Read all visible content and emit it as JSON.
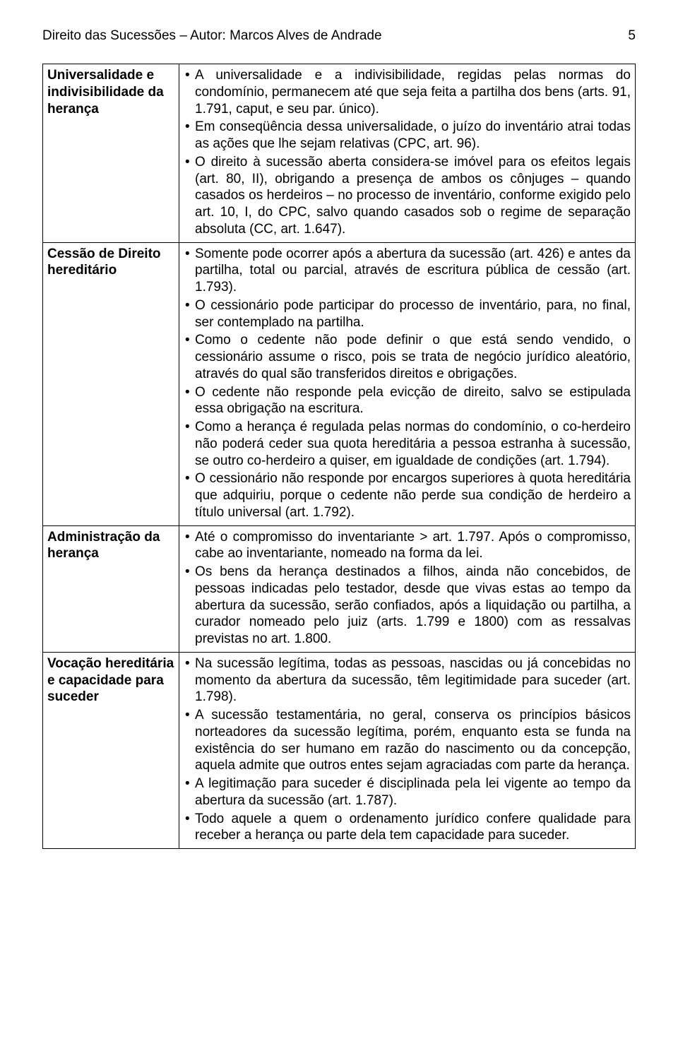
{
  "header": {
    "title": "Direito das Sucessões – Autor: Marcos Alves de Andrade",
    "page_number": "5"
  },
  "rows": [
    {
      "label": "Universalidade e indivisibilidade da herança",
      "bullets": [
        "A universalidade e a indivisibilidade, regidas pelas normas do condomínio, permanecem até que seja feita a partilha dos bens (arts. 91, 1.791, caput, e seu par. único).",
        "Em conseqüência dessa universalidade, o juízo do inventário atrai todas as ações que lhe sejam relativas (CPC, art. 96).",
        "O direito à sucessão aberta considera-se imóvel para os efeitos legais (art. 80, II), obrigando a presença de ambos os cônjuges – quando casados os herdeiros – no processo de inventário, conforme exigido pelo art. 10, I, do CPC, salvo quando casados sob o regime de separação absoluta (CC, art. 1.647)."
      ]
    },
    {
      "label": "Cessão de Direito hereditário",
      "bullets": [
        "Somente pode ocorrer após a abertura da sucessão (art. 426) e antes da partilha, total ou parcial, através de escritura pública de cessão (art. 1.793).",
        "O cessionário pode participar do processo de inventário, para, no final, ser contemplado na partilha.",
        "Como o cedente não pode definir o que está sendo vendido, o cessionário assume o risco, pois se trata de negócio jurídico aleatório, através do qual são transferidos direitos e obrigações.",
        "O cedente não responde pela evicção de direito, salvo se estipulada essa obrigação na escritura.",
        "Como a herança é regulada pelas normas do condomínio, o co-herdeiro não poderá ceder sua quota hereditária a pessoa estranha à sucessão, se outro co-herdeiro a quiser, em igualdade de condições (art. 1.794).",
        "O cessionário não responde por encargos superiores à quota hereditária que adquiriu, porque o cedente não perde sua condição de herdeiro a título universal (art. 1.792)."
      ]
    },
    {
      "label": "Administração da herança",
      "bullets": [
        "Até o compromisso do inventariante > art. 1.797. Após o compromisso, cabe ao inventariante, nomeado na forma da lei.",
        "Os bens da herança destinados a filhos, ainda não concebidos, de pessoas indicadas pelo testador, desde que vivas estas ao tempo da abertura da sucessão, serão confiados, após a liquidação ou partilha, a curador nomeado pelo juiz (arts. 1.799 e 1800) com as ressalvas previstas no art. 1.800."
      ]
    },
    {
      "label": "Vocação hereditária e capacidade para suceder",
      "bullets": [
        "Na sucessão legítima, todas as pessoas, nascidas ou já concebidas no momento da abertura da sucessão, têm legitimidade para suceder (art. 1.798).",
        "A sucessão testamentária, no geral, conserva os princípios básicos norteadores da sucessão legítima, porém, enquanto esta se funda na existência do ser humano em razão do nascimento ou da concepção, aquela admite que outros entes sejam agraciadas com parte da herança.",
        "A legitimação para suceder é disciplinada pela lei vigente ao tempo da abertura da sucessão (art. 1.787).",
        "Todo aquele a quem o ordenamento jurídico confere qualidade para receber a herança ou parte dela tem capacidade para suceder."
      ]
    }
  ]
}
